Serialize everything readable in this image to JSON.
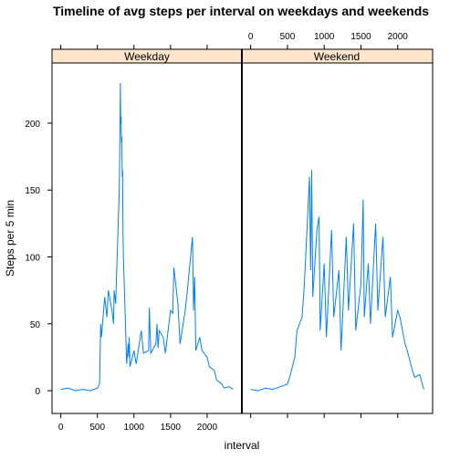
{
  "chart_data": {
    "type": "line",
    "title": "Timeline of avg steps per interval on weekdays and weekends",
    "xlabel": "interval",
    "ylabel": "Steps per 5 min",
    "xlim": [
      -120,
      2475
    ],
    "ylim": [
      -17,
      245
    ],
    "x_ticks": [
      0,
      500,
      1000,
      1500,
      2000
    ],
    "y_ticks": [
      0,
      50,
      100,
      150,
      200
    ],
    "grid": false,
    "line_color": "#0080ff",
    "strip_fill": "#ffe5cc",
    "panels": [
      {
        "name": "Weekday",
        "x": [
          0,
          100,
          200,
          300,
          400,
          500,
          530,
          545,
          555,
          600,
          630,
          650,
          700,
          720,
          730,
          750,
          800,
          810,
          815,
          820,
          825,
          830,
          835,
          840,
          845,
          850,
          855,
          900,
          920,
          930,
          935,
          945,
          1000,
          1030,
          1100,
          1130,
          1200,
          1210,
          1230,
          1300,
          1315,
          1330,
          1345,
          1400,
          1430,
          1500,
          1530,
          1545,
          1600,
          1630,
          1700,
          1730,
          1800,
          1815,
          1830,
          1845,
          1900,
          1930,
          2000,
          2030,
          2100,
          2130,
          2200,
          2230,
          2300,
          2355
        ],
        "y": [
          1,
          2,
          0,
          1,
          0,
          2,
          5,
          50,
          40,
          70,
          55,
          75,
          60,
          50,
          75,
          65,
          150,
          195,
          230,
          200,
          205,
          185,
          190,
          160,
          165,
          120,
          100,
          20,
          35,
          25,
          40,
          18,
          30,
          20,
          45,
          28,
          30,
          62,
          28,
          35,
          50,
          32,
          45,
          40,
          28,
          60,
          58,
          92,
          65,
          35,
          60,
          75,
          115,
          60,
          85,
          30,
          40,
          30,
          25,
          18,
          15,
          8,
          5,
          2,
          3,
          1
        ]
      },
      {
        "name": "Weekend",
        "x": [
          0,
          100,
          200,
          300,
          400,
          500,
          530,
          600,
          630,
          700,
          730,
          800,
          815,
          830,
          845,
          900,
          930,
          945,
          1000,
          1030,
          1100,
          1130,
          1200,
          1230,
          1300,
          1330,
          1400,
          1430,
          1500,
          1530,
          1545,
          1600,
          1630,
          1700,
          1730,
          1800,
          1830,
          1900,
          1930,
          2000,
          2030,
          2100,
          2130,
          2200,
          2230,
          2300,
          2355
        ],
        "y": [
          1,
          0,
          2,
          1,
          3,
          5,
          10,
          25,
          45,
          55,
          80,
          160,
          90,
          165,
          70,
          120,
          130,
          45,
          95,
          40,
          120,
          55,
          90,
          30,
          115,
          60,
          125,
          45,
          80,
          143,
          55,
          95,
          50,
          125,
          60,
          115,
          55,
          85,
          40,
          60,
          55,
          35,
          30,
          15,
          10,
          12,
          1
        ]
      }
    ]
  }
}
